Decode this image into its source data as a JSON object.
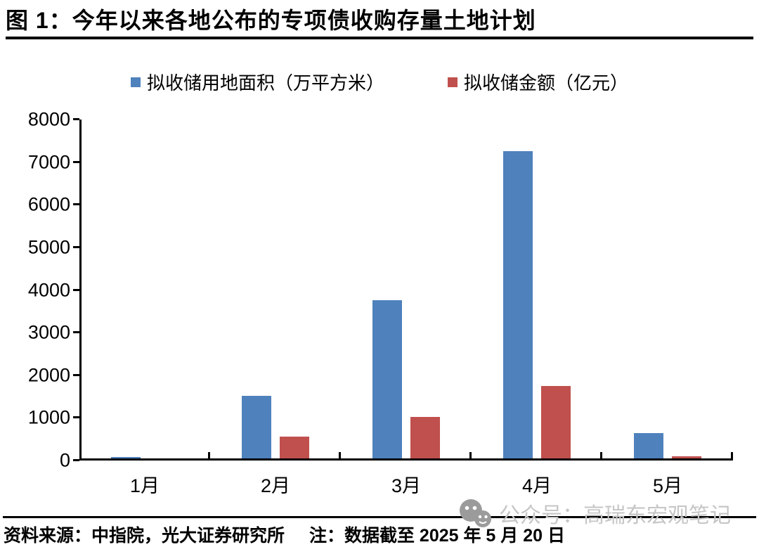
{
  "title": "图 1：今年以来各地公布的专项债收购存量土地计划",
  "legend": [
    {
      "label": "拟收储用地面积（万平方米）",
      "color": "#4F81BD"
    },
    {
      "label": "拟收储金额（亿元）",
      "color": "#C0504D"
    }
  ],
  "footer": {
    "source": "资料来源：中指院，光大证券研究所",
    "note": "注：数据截至 2025 年 5 月 20 日"
  },
  "watermark": {
    "icon": "wechat-icon",
    "text": "公众号：高瑞东宏观笔记",
    "icon_color": "#9b9b9b",
    "text_color": "#c6c6c6"
  },
  "chart_data": {
    "type": "bar",
    "title": "图 1：今年以来各地公布的专项债收购存量土地计划",
    "categories": [
      "1月",
      "2月",
      "3月",
      "4月",
      "5月"
    ],
    "series": [
      {
        "name": "拟收储用地面积（万平方米）",
        "color": "#4F81BD",
        "values": [
          80,
          1520,
          3760,
          7260,
          640
        ]
      },
      {
        "name": "拟收储金额（亿元）",
        "color": "#C0504D",
        "values": [
          30,
          560,
          1030,
          1750,
          95
        ]
      }
    ],
    "xlabel": "",
    "ylabel": "",
    "ylim": [
      0,
      8000
    ],
    "yticks": [
      0,
      1000,
      2000,
      3000,
      4000,
      5000,
      6000,
      7000,
      8000
    ],
    "grid": false,
    "legend_position": "top"
  }
}
